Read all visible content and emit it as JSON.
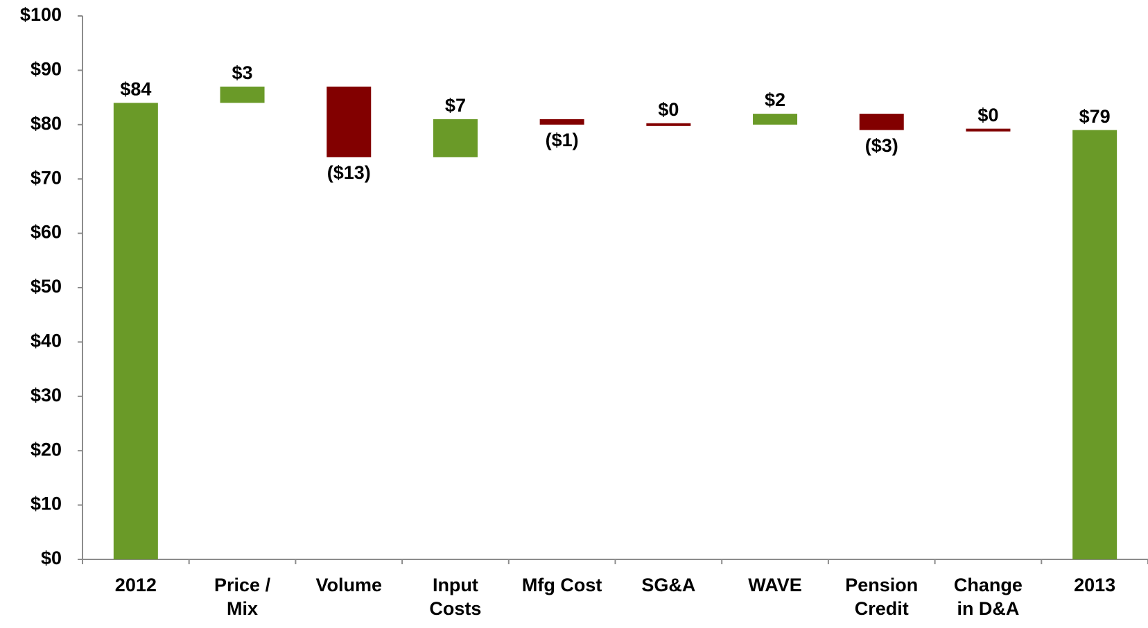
{
  "chart_data": {
    "type": "waterfall",
    "categories": [
      "2012",
      "Price /\nMix",
      "Volume",
      "Input\nCosts",
      "Mfg Cost",
      "SG&A",
      "WAVE",
      "Pension\nCredit",
      "Change\nin D&A",
      "2013"
    ],
    "measure": [
      "total",
      "relative",
      "relative",
      "relative",
      "relative",
      "relative",
      "relative",
      "relative",
      "relative",
      "total"
    ],
    "values": [
      84,
      3,
      -13,
      7,
      -1,
      0,
      2,
      -3,
      0,
      79
    ],
    "value_labels": [
      "$84",
      "$3",
      "($13)",
      "$7",
      "($1)",
      "$0",
      "$2",
      "($3)",
      "$0",
      "$79"
    ],
    "colors": [
      "#6a9a28",
      "#6a9a28",
      "#820000",
      "#6a9a28",
      "#820000",
      "#820000",
      "#6a9a28",
      "#820000",
      "#820000",
      "#6a9a28"
    ],
    "ylim": [
      0,
      100
    ],
    "yticks": [
      {
        "value": 0,
        "label": "$0"
      },
      {
        "value": 10,
        "label": "$10"
      },
      {
        "value": 20,
        "label": "$20"
      },
      {
        "value": 30,
        "label": "$30"
      },
      {
        "value": 40,
        "label": "$40"
      },
      {
        "value": 50,
        "label": "$50"
      },
      {
        "value": 60,
        "label": "$60"
      },
      {
        "value": 70,
        "label": "$70"
      },
      {
        "value": 80,
        "label": "$80"
      },
      {
        "value": 90,
        "label": "$90"
      },
      {
        "value": 100,
        "label": "$100"
      }
    ],
    "grid": false
  }
}
